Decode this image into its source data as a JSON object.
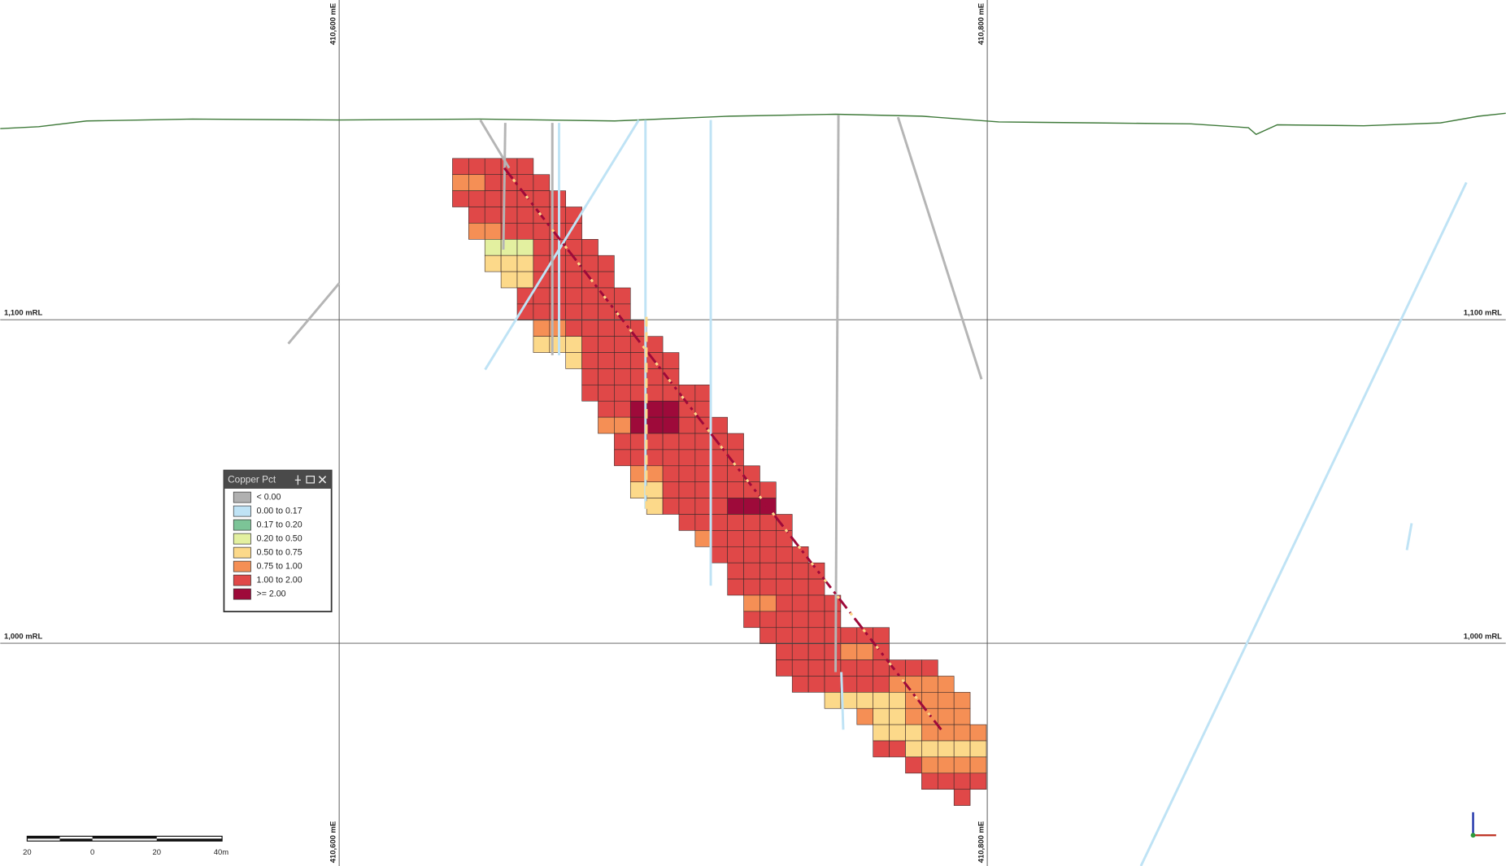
{
  "grid": {
    "eastings": [
      {
        "top": "410,600 mE",
        "bottom": "410,600 mE"
      },
      {
        "top": "410,800 mE",
        "bottom": "410,800 mE"
      }
    ],
    "elevations": [
      {
        "left": "1,100 mRL",
        "right": "1,100 mRL"
      },
      {
        "left": "1,000 mRL",
        "right": "1,000 mRL"
      }
    ]
  },
  "legend": {
    "title": "Copper Pct",
    "items": [
      {
        "label": "< 0.00",
        "color": "#b0b0b0"
      },
      {
        "label": "0.00 to 0.17",
        "color": "#bfe3f5"
      },
      {
        "label": "0.17 to 0.20",
        "color": "#7cc497"
      },
      {
        "label": "0.20 to 0.50",
        "color": "#e3f0a0"
      },
      {
        "label": "0.50 to 0.75",
        "color": "#fcd98a"
      },
      {
        "label": "0.75 to 1.00",
        "color": "#f58f55"
      },
      {
        "label": "1.00 to 2.00",
        "color": "#e04848"
      },
      {
        "label": ">= 2.00",
        "color": "#9e0a3a"
      }
    ]
  },
  "scale_bar": {
    "labels": [
      "20",
      "0",
      "20",
      "40m"
    ]
  }
}
